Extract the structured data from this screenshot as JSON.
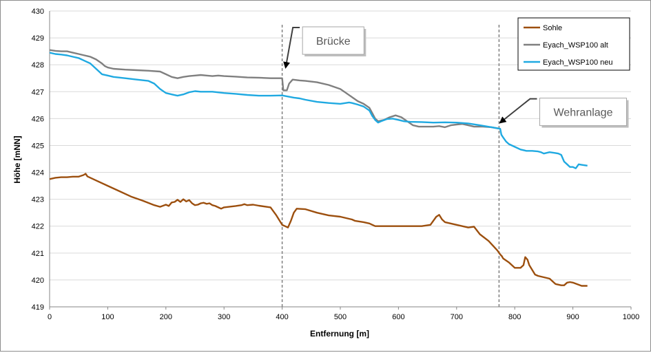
{
  "chart_data": {
    "type": "line",
    "title": "",
    "xlabel": "Entfernung [m]",
    "ylabel": "Höhe [mNN]",
    "xlim": [
      0,
      1000
    ],
    "ylim": [
      419,
      430
    ],
    "x_ticks": [
      0,
      100,
      200,
      300,
      400,
      500,
      600,
      700,
      800,
      900,
      1000
    ],
    "y_ticks": [
      419,
      420,
      421,
      422,
      423,
      424,
      425,
      426,
      427,
      428,
      429,
      430
    ],
    "grid": "horizontal",
    "legend_position": "top-right",
    "series": [
      {
        "name": "Sohle",
        "color": "#9C4F0E",
        "points": [
          [
            0,
            423.75
          ],
          [
            10,
            423.8
          ],
          [
            20,
            423.82
          ],
          [
            30,
            423.82
          ],
          [
            40,
            423.84
          ],
          [
            50,
            423.84
          ],
          [
            58,
            423.9
          ],
          [
            62,
            423.95
          ],
          [
            65,
            423.85
          ],
          [
            80,
            423.7
          ],
          [
            100,
            423.5
          ],
          [
            120,
            423.3
          ],
          [
            140,
            423.1
          ],
          [
            160,
            422.95
          ],
          [
            180,
            422.78
          ],
          [
            190,
            422.72
          ],
          [
            200,
            422.8
          ],
          [
            205,
            422.75
          ],
          [
            210,
            422.88
          ],
          [
            215,
            422.9
          ],
          [
            220,
            422.98
          ],
          [
            225,
            422.9
          ],
          [
            230,
            423.0
          ],
          [
            235,
            422.92
          ],
          [
            240,
            422.97
          ],
          [
            245,
            422.85
          ],
          [
            250,
            422.78
          ],
          [
            255,
            422.8
          ],
          [
            260,
            422.85
          ],
          [
            265,
            422.87
          ],
          [
            270,
            422.83
          ],
          [
            275,
            422.85
          ],
          [
            280,
            422.78
          ],
          [
            285,
            422.75
          ],
          [
            290,
            422.7
          ],
          [
            295,
            422.65
          ],
          [
            300,
            422.7
          ],
          [
            320,
            422.75
          ],
          [
            330,
            422.78
          ],
          [
            335,
            422.82
          ],
          [
            340,
            422.78
          ],
          [
            350,
            422.8
          ],
          [
            360,
            422.76
          ],
          [
            380,
            422.7
          ],
          [
            390,
            422.4
          ],
          [
            400,
            422.05
          ],
          [
            410,
            421.95
          ],
          [
            415,
            422.2
          ],
          [
            420,
            422.5
          ],
          [
            425,
            422.65
          ],
          [
            440,
            422.63
          ],
          [
            460,
            422.5
          ],
          [
            480,
            422.4
          ],
          [
            500,
            422.35
          ],
          [
            520,
            422.25
          ],
          [
            525,
            422.2
          ],
          [
            540,
            422.15
          ],
          [
            550,
            422.1
          ],
          [
            560,
            422.0
          ],
          [
            600,
            422.0
          ],
          [
            640,
            422.0
          ],
          [
            655,
            422.05
          ],
          [
            665,
            422.35
          ],
          [
            670,
            422.42
          ],
          [
            675,
            422.25
          ],
          [
            680,
            422.15
          ],
          [
            700,
            422.05
          ],
          [
            720,
            421.95
          ],
          [
            730,
            421.98
          ],
          [
            740,
            421.7
          ],
          [
            755,
            421.45
          ],
          [
            770,
            421.1
          ],
          [
            775,
            420.95
          ],
          [
            778,
            420.88
          ],
          [
            780,
            420.8
          ],
          [
            790,
            420.65
          ],
          [
            800,
            420.45
          ],
          [
            810,
            420.45
          ],
          [
            815,
            420.55
          ],
          [
            818,
            420.85
          ],
          [
            822,
            420.75
          ],
          [
            825,
            420.55
          ],
          [
            835,
            420.2
          ],
          [
            840,
            420.15
          ],
          [
            850,
            420.1
          ],
          [
            860,
            420.05
          ],
          [
            870,
            419.85
          ],
          [
            880,
            419.8
          ],
          [
            885,
            419.8
          ],
          [
            890,
            419.9
          ],
          [
            895,
            419.92
          ],
          [
            900,
            419.9
          ],
          [
            910,
            419.82
          ],
          [
            915,
            419.78
          ],
          [
            925,
            419.78
          ]
        ]
      },
      {
        "name": "Eyach_WSP100 alt",
        "color": "#7F7F7F",
        "points": [
          [
            0,
            428.55
          ],
          [
            10,
            428.52
          ],
          [
            20,
            428.5
          ],
          [
            30,
            428.5
          ],
          [
            40,
            428.45
          ],
          [
            50,
            428.4
          ],
          [
            60,
            428.35
          ],
          [
            70,
            428.3
          ],
          [
            80,
            428.2
          ],
          [
            90,
            428.05
          ],
          [
            95,
            427.95
          ],
          [
            100,
            427.9
          ],
          [
            110,
            427.85
          ],
          [
            130,
            427.82
          ],
          [
            150,
            427.8
          ],
          [
            170,
            427.78
          ],
          [
            190,
            427.75
          ],
          [
            200,
            427.65
          ],
          [
            210,
            427.55
          ],
          [
            220,
            427.5
          ],
          [
            230,
            427.55
          ],
          [
            240,
            427.58
          ],
          [
            250,
            427.6
          ],
          [
            260,
            427.62
          ],
          [
            270,
            427.6
          ],
          [
            280,
            427.58
          ],
          [
            290,
            427.6
          ],
          [
            300,
            427.58
          ],
          [
            320,
            427.56
          ],
          [
            340,
            427.53
          ],
          [
            360,
            427.52
          ],
          [
            380,
            427.5
          ],
          [
            400,
            427.5
          ],
          [
            402,
            427.05
          ],
          [
            408,
            427.05
          ],
          [
            412,
            427.3
          ],
          [
            418,
            427.45
          ],
          [
            430,
            427.42
          ],
          [
            440,
            427.4
          ],
          [
            460,
            427.35
          ],
          [
            480,
            427.25
          ],
          [
            500,
            427.1
          ],
          [
            510,
            426.95
          ],
          [
            520,
            426.8
          ],
          [
            530,
            426.65
          ],
          [
            540,
            426.55
          ],
          [
            550,
            426.4
          ],
          [
            555,
            426.2
          ],
          [
            560,
            426.0
          ],
          [
            565,
            425.9
          ],
          [
            575,
            425.95
          ],
          [
            585,
            426.05
          ],
          [
            595,
            426.12
          ],
          [
            605,
            426.05
          ],
          [
            615,
            425.9
          ],
          [
            625,
            425.75
          ],
          [
            635,
            425.7
          ],
          [
            645,
            425.7
          ],
          [
            660,
            425.7
          ],
          [
            670,
            425.72
          ],
          [
            680,
            425.68
          ],
          [
            690,
            425.75
          ],
          [
            700,
            425.78
          ],
          [
            710,
            425.8
          ],
          [
            720,
            425.75
          ],
          [
            730,
            425.7
          ],
          [
            745,
            425.7
          ],
          [
            760,
            425.68
          ],
          [
            775,
            425.62
          ]
        ]
      },
      {
        "name": "Eyach_WSP100 neu",
        "color": "#1FA9E1",
        "points": [
          [
            0,
            428.45
          ],
          [
            10,
            428.4
          ],
          [
            20,
            428.38
          ],
          [
            30,
            428.35
          ],
          [
            40,
            428.3
          ],
          [
            50,
            428.25
          ],
          [
            60,
            428.15
          ],
          [
            70,
            428.05
          ],
          [
            80,
            427.85
          ],
          [
            90,
            427.65
          ],
          [
            100,
            427.6
          ],
          [
            110,
            427.55
          ],
          [
            130,
            427.5
          ],
          [
            150,
            427.45
          ],
          [
            170,
            427.4
          ],
          [
            180,
            427.3
          ],
          [
            190,
            427.1
          ],
          [
            200,
            426.95
          ],
          [
            210,
            426.9
          ],
          [
            220,
            426.85
          ],
          [
            230,
            426.9
          ],
          [
            240,
            426.98
          ],
          [
            250,
            427.02
          ],
          [
            260,
            427.0
          ],
          [
            280,
            427.0
          ],
          [
            300,
            426.95
          ],
          [
            320,
            426.92
          ],
          [
            340,
            426.88
          ],
          [
            360,
            426.85
          ],
          [
            380,
            426.85
          ],
          [
            400,
            426.86
          ],
          [
            410,
            426.82
          ],
          [
            420,
            426.78
          ],
          [
            430,
            426.75
          ],
          [
            440,
            426.7
          ],
          [
            460,
            426.62
          ],
          [
            480,
            426.58
          ],
          [
            500,
            426.55
          ],
          [
            515,
            426.6
          ],
          [
            520,
            426.58
          ],
          [
            530,
            426.52
          ],
          [
            540,
            426.45
          ],
          [
            550,
            426.3
          ],
          [
            555,
            426.1
          ],
          [
            560,
            425.95
          ],
          [
            565,
            425.85
          ],
          [
            570,
            425.9
          ],
          [
            580,
            425.98
          ],
          [
            590,
            426.0
          ],
          [
            600,
            425.95
          ],
          [
            610,
            425.9
          ],
          [
            620,
            425.88
          ],
          [
            640,
            425.87
          ],
          [
            660,
            425.85
          ],
          [
            680,
            425.86
          ],
          [
            700,
            425.85
          ],
          [
            720,
            425.82
          ],
          [
            740,
            425.75
          ],
          [
            760,
            425.68
          ],
          [
            775,
            425.62
          ],
          [
            777,
            425.4
          ],
          [
            780,
            425.3
          ],
          [
            785,
            425.15
          ],
          [
            790,
            425.05
          ],
          [
            800,
            424.95
          ],
          [
            810,
            424.85
          ],
          [
            820,
            424.8
          ],
          [
            830,
            424.8
          ],
          [
            840,
            424.78
          ],
          [
            845,
            424.75
          ],
          [
            850,
            424.7
          ],
          [
            860,
            424.75
          ],
          [
            870,
            424.72
          ],
          [
            875,
            424.7
          ],
          [
            880,
            424.65
          ],
          [
            885,
            424.4
          ],
          [
            890,
            424.3
          ],
          [
            895,
            424.2
          ],
          [
            900,
            424.2
          ],
          [
            905,
            424.15
          ],
          [
            910,
            424.3
          ],
          [
            915,
            424.28
          ],
          [
            925,
            424.25
          ]
        ]
      }
    ],
    "markers": [
      {
        "x": 400,
        "label": "Brücke",
        "label_anchor": {
          "x": 435,
          "y": 428.9
        },
        "arrow_to": {
          "x": 406,
          "y": 427.9
        }
      },
      {
        "x": 773,
        "label": "Wehranlage",
        "label_anchor": {
          "x": 843,
          "y": 426.25
        },
        "arrow_to": {
          "x": 775,
          "y": 425.85
        }
      }
    ]
  }
}
